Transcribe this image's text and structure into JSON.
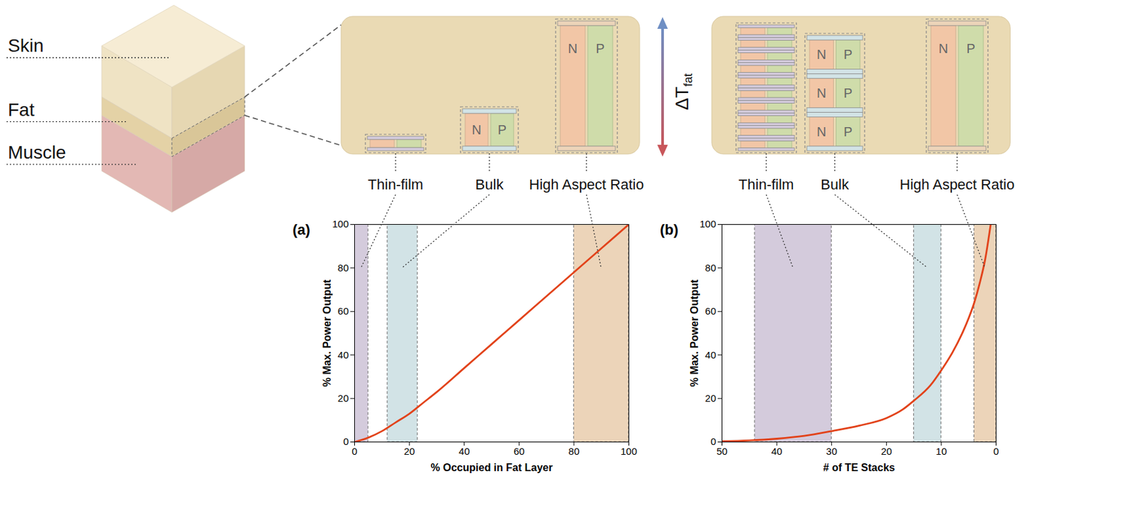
{
  "diagram": {
    "tissue_layers": [
      "Skin",
      "Fat",
      "Muscle"
    ],
    "temperature_label": {
      "text": "ΔT",
      "subscript": "fat"
    },
    "leg_labels": [
      "N",
      "P"
    ],
    "panels": [
      {
        "devices": [
          {
            "label": "Thin-film",
            "stacks": 1
          },
          {
            "label": "Bulk",
            "stacks": 1
          },
          {
            "label": "High Aspect Ratio",
            "stacks": 1
          }
        ]
      },
      {
        "devices": [
          {
            "label": "Thin-film",
            "stacks": 10
          },
          {
            "label": "Bulk",
            "stacks": 3
          },
          {
            "label": "High Aspect Ratio",
            "stacks": 1
          }
        ]
      }
    ]
  },
  "chart_data": [
    {
      "type": "line",
      "panel_label": "(a)",
      "x_label": "% Occupied in Fat Layer",
      "y_label": "% Max. Power Output",
      "xlim": [
        0,
        100
      ],
      "xticks": [
        0,
        20,
        40,
        60,
        80,
        100
      ],
      "ylim": [
        0,
        100
      ],
      "yticks": [
        0,
        20,
        40,
        60,
        80,
        100
      ],
      "grid": false,
      "x": [
        0,
        5,
        10,
        15,
        20,
        25,
        30,
        40,
        50,
        60,
        70,
        80,
        90,
        100
      ],
      "values": [
        0,
        2,
        5,
        9,
        13,
        18,
        23,
        34,
        45,
        56,
        67,
        78,
        89,
        100
      ],
      "color": "#e2431b",
      "regions": [
        {
          "x0": 0,
          "x1": 5,
          "color": "#d4cbdc"
        },
        {
          "x0": 12,
          "x1": 23,
          "color": "#d2e3e6"
        },
        {
          "x0": 80,
          "x1": 100,
          "color": "#ecd4b9"
        }
      ]
    },
    {
      "type": "line",
      "panel_label": "(b)",
      "x_label": "# of TE Stacks",
      "y_label": "% Max. Power Output",
      "xlim": [
        50,
        0
      ],
      "xticks": [
        50,
        40,
        30,
        20,
        10,
        0
      ],
      "ylim": [
        0,
        100
      ],
      "yticks": [
        0,
        20,
        40,
        60,
        80,
        100
      ],
      "grid": false,
      "x": [
        1,
        2,
        3,
        4,
        5,
        6,
        8,
        10,
        12,
        15,
        17,
        20,
        25,
        30,
        35,
        40,
        45,
        50
      ],
      "values": [
        100,
        84,
        73,
        64,
        57,
        51,
        41,
        33,
        26,
        19,
        15,
        11,
        7.5,
        5,
        2.8,
        1.5,
        0.7,
        0.3
      ],
      "color": "#e2431b",
      "regions": [
        {
          "x0": 30,
          "x1": 44,
          "color": "#d4cbdc"
        },
        {
          "x0": 10,
          "x1": 15,
          "color": "#d2e3e6"
        },
        {
          "x0": 0,
          "x1": 4,
          "color": "#ecd4b9"
        }
      ]
    }
  ]
}
